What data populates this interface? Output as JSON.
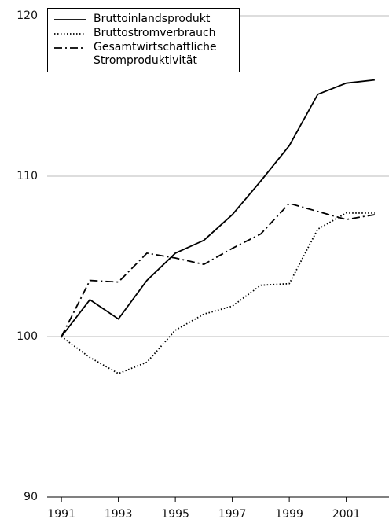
{
  "chart_data": {
    "type": "line",
    "x": [
      1991,
      1992,
      1993,
      1994,
      1995,
      1996,
      1997,
      1998,
      1999,
      2000,
      2001,
      2002
    ],
    "series": [
      {
        "name": "Bruttoinlandsprodukt",
        "color": "#000000",
        "dash": "solid",
        "values": [
          100,
          102.3,
          101.1,
          103.5,
          105.2,
          106.0,
          107.6,
          109.7,
          111.9,
          115.1,
          115.8,
          116.0
        ]
      },
      {
        "name": "Bruttostromverbrauch",
        "color": "#000000",
        "dash": "dotted",
        "values": [
          100,
          98.7,
          97.7,
          98.4,
          100.4,
          101.4,
          101.9,
          103.2,
          103.3,
          106.7,
          107.7,
          107.7
        ]
      },
      {
        "name": "Gesamtwirtschaftliche Stromproduktivität",
        "color": "#000000",
        "dash": "dashdot",
        "values": [
          100,
          103.5,
          103.4,
          105.2,
          104.9,
          104.5,
          105.5,
          106.4,
          108.3,
          107.8,
          107.3,
          107.6
        ]
      }
    ],
    "xlim": [
      1990.5,
      2002.5
    ],
    "xticks": [
      1991,
      1993,
      1995,
      1997,
      1999,
      2001
    ],
    "ylim": [
      90,
      120
    ],
    "yticks": [
      90,
      100,
      110,
      120
    ],
    "grid": true,
    "legend": "top-left"
  }
}
